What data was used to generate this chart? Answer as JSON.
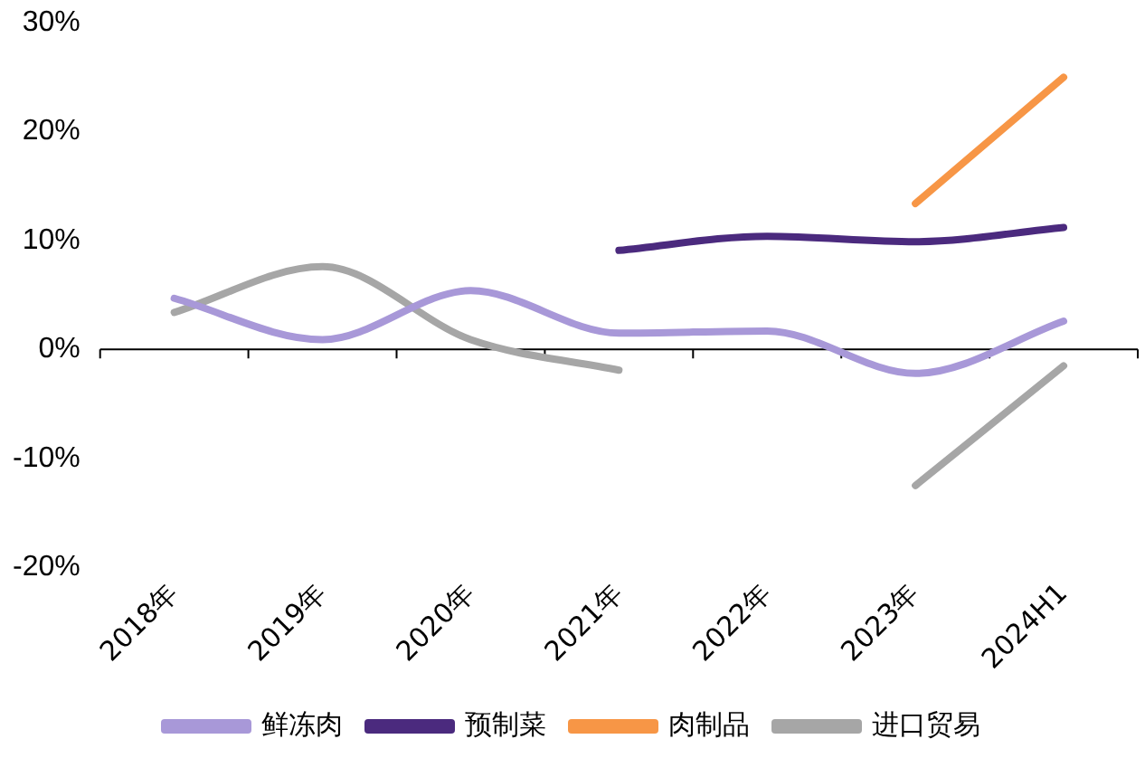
{
  "chart_data": {
    "type": "line",
    "categories": [
      "2018年",
      "2019年",
      "2020年",
      "2021年",
      "2022年",
      "2023年",
      "2024H1"
    ],
    "series": [
      {
        "name": "鲜冻肉",
        "color": "#a898d8",
        "values": [
          4.7,
          0.9,
          5.4,
          1.5,
          1.7,
          -2.2,
          2.6
        ]
      },
      {
        "name": "预制菜",
        "color": "#4b2a7e",
        "values": [
          null,
          null,
          null,
          9.1,
          10.4,
          9.9,
          11.2
        ]
      },
      {
        "name": "肉制品",
        "color": "#f79646",
        "values": [
          null,
          null,
          null,
          null,
          null,
          13.4,
          25
        ]
      },
      {
        "name": "进口贸易",
        "color": "#a6a6a6",
        "values": [
          3.4,
          7.6,
          0.9,
          -1.9,
          null,
          -12.5,
          -1.5
        ]
      }
    ],
    "ylim": [
      -20,
      30
    ],
    "yticks": [
      {
        "value": -20,
        "label": "-20%"
      },
      {
        "value": -10,
        "label": "-10%"
      },
      {
        "value": 0,
        "label": "0%"
      },
      {
        "value": 10,
        "label": "10%"
      },
      {
        "value": 20,
        "label": "20%"
      },
      {
        "value": 30,
        "label": "30%"
      }
    ],
    "ref_lines": [
      {
        "axis": "y",
        "value": 0,
        "color": "#000000"
      }
    ],
    "grid": false,
    "legend": "bottom",
    "marker": "none",
    "line_style": "solid"
  }
}
